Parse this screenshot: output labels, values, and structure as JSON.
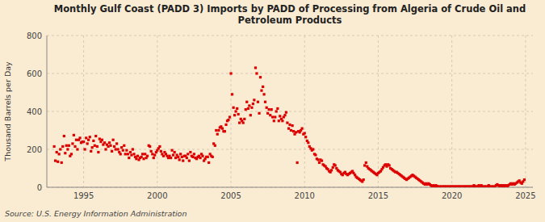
{
  "chart_data": {
    "type": "scatter",
    "title": "Monthly Gulf Coast (PADD 3) Imports by PADD of Processing from Algeria of Crude Oil and\nPetroleum Products",
    "ylabel": "Thousand Barrels per Day",
    "source": "Source: U.S. Energy Information Administration",
    "color": "#dd0000",
    "marker": "square",
    "grid": true,
    "xlim": [
      1992.5,
      2025.5
    ],
    "ylim": [
      0,
      800
    ],
    "xticks": [
      1995,
      2000,
      2005,
      2010,
      2015,
      2020,
      2025
    ],
    "yticks": [
      0,
      200,
      400,
      600,
      800
    ],
    "x": [
      1993.0,
      1993.08,
      1993.17,
      1993.25,
      1993.33,
      1993.42,
      1993.5,
      1993.58,
      1993.67,
      1993.75,
      1993.83,
      1993.92,
      1994.0,
      1994.08,
      1994.17,
      1994.25,
      1994.33,
      1994.42,
      1994.5,
      1994.58,
      1994.67,
      1994.75,
      1994.83,
      1994.92,
      1995.0,
      1995.08,
      1995.17,
      1995.25,
      1995.33,
      1995.42,
      1995.5,
      1995.58,
      1995.67,
      1995.75,
      1995.83,
      1995.92,
      1996.0,
      1996.08,
      1996.17,
      1996.25,
      1996.33,
      1996.42,
      1996.5,
      1996.58,
      1996.67,
      1996.75,
      1996.83,
      1996.92,
      1997.0,
      1997.08,
      1997.17,
      1997.25,
      1997.33,
      1997.42,
      1997.5,
      1997.58,
      1997.67,
      1997.75,
      1997.83,
      1997.92,
      1998.0,
      1998.08,
      1998.17,
      1998.25,
      1998.33,
      1998.42,
      1998.5,
      1998.58,
      1998.67,
      1998.75,
      1998.83,
      1998.92,
      1999.0,
      1999.08,
      1999.17,
      1999.25,
      1999.33,
      1999.42,
      1999.5,
      1999.58,
      1999.67,
      1999.75,
      1999.83,
      1999.92,
      2000.0,
      2000.08,
      2000.17,
      2000.25,
      2000.33,
      2000.42,
      2000.5,
      2000.58,
      2000.67,
      2000.75,
      2000.83,
      2000.92,
      2001.0,
      2001.08,
      2001.17,
      2001.25,
      2001.33,
      2001.42,
      2001.5,
      2001.58,
      2001.67,
      2001.75,
      2001.83,
      2001.92,
      2002.0,
      2002.08,
      2002.17,
      2002.25,
      2002.33,
      2002.42,
      2002.5,
      2002.58,
      2002.67,
      2002.75,
      2002.83,
      2002.92,
      2003.0,
      2003.08,
      2003.17,
      2003.25,
      2003.33,
      2003.42,
      2003.5,
      2003.58,
      2003.67,
      2003.75,
      2003.83,
      2003.92,
      2004.0,
      2004.08,
      2004.17,
      2004.25,
      2004.33,
      2004.42,
      2004.5,
      2004.58,
      2004.67,
      2004.75,
      2004.83,
      2004.92,
      2005.0,
      2005.08,
      2005.17,
      2005.25,
      2005.33,
      2005.42,
      2005.5,
      2005.58,
      2005.67,
      2005.75,
      2005.83,
      2005.92,
      2006.0,
      2006.08,
      2006.17,
      2006.25,
      2006.33,
      2006.42,
      2006.5,
      2006.58,
      2006.67,
      2006.75,
      2006.83,
      2006.92,
      2007.0,
      2007.08,
      2007.17,
      2007.25,
      2007.33,
      2007.42,
      2007.5,
      2007.58,
      2007.67,
      2007.75,
      2007.83,
      2007.92,
      2008.0,
      2008.08,
      2008.17,
      2008.25,
      2008.33,
      2008.42,
      2008.5,
      2008.58,
      2008.67,
      2008.75,
      2008.83,
      2008.92,
      2009.0,
      2009.08,
      2009.17,
      2009.25,
      2009.33,
      2009.42,
      2009.5,
      2009.58,
      2009.67,
      2009.75,
      2009.83,
      2009.92,
      2010.0,
      2010.08,
      2010.17,
      2010.25,
      2010.33,
      2010.42,
      2010.5,
      2010.58,
      2010.67,
      2010.75,
      2010.83,
      2010.92,
      2011.0,
      2011.08,
      2011.17,
      2011.25,
      2011.33,
      2011.42,
      2011.5,
      2011.58,
      2011.67,
      2011.75,
      2011.83,
      2011.92,
      2012.0,
      2012.08,
      2012.17,
      2012.25,
      2012.33,
      2012.42,
      2012.5,
      2012.58,
      2012.67,
      2012.75,
      2012.83,
      2012.92,
      2013.0,
      2013.08,
      2013.17,
      2013.25,
      2013.33,
      2013.42,
      2013.5,
      2013.58,
      2013.67,
      2013.75,
      2013.83,
      2013.92,
      2014.0,
      2014.08,
      2014.17,
      2014.25,
      2014.33,
      2014.42,
      2014.5,
      2014.58,
      2014.67,
      2014.75,
      2014.83,
      2014.92,
      2015.0,
      2015.08,
      2015.17,
      2015.25,
      2015.33,
      2015.42,
      2015.5,
      2015.58,
      2015.67,
      2015.75,
      2015.83,
      2015.92,
      2016.0,
      2016.08,
      2016.17,
      2016.25,
      2016.33,
      2016.42,
      2016.5,
      2016.58,
      2016.67,
      2016.75,
      2016.83,
      2016.92,
      2017.0,
      2017.08,
      2017.17,
      2017.25,
      2017.33,
      2017.42,
      2017.5,
      2017.58,
      2017.67,
      2017.75,
      2017.83,
      2017.92,
      2018.0,
      2018.08,
      2018.17,
      2018.25,
      2018.33,
      2018.42,
      2018.5,
      2018.58,
      2018.67,
      2018.75,
      2018.83,
      2018.92,
      2019.0,
      2019.08,
      2019.17,
      2019.25,
      2019.33,
      2019.42,
      2019.5,
      2019.58,
      2019.67,
      2019.75,
      2019.83,
      2019.92,
      2020.0,
      2020.08,
      2020.17,
      2020.25,
      2020.33,
      2020.42,
      2020.5,
      2020.58,
      2020.67,
      2020.75,
      2020.83,
      2020.92,
      2021.0,
      2021.08,
      2021.17,
      2021.25,
      2021.33,
      2021.42,
      2021.5,
      2021.58,
      2021.67,
      2021.75,
      2021.83,
      2021.92,
      2022.0,
      2022.08,
      2022.17,
      2022.25,
      2022.33,
      2022.42,
      2022.5,
      2022.58,
      2022.67,
      2022.75,
      2022.83,
      2022.92,
      2023.0,
      2023.08,
      2023.17,
      2023.25,
      2023.33,
      2023.42,
      2023.5,
      2023.58,
      2023.67,
      2023.75,
      2023.83,
      2023.92,
      2024.0,
      2024.08,
      2024.17,
      2024.25,
      2024.33,
      2024.42,
      2024.5,
      2024.58,
      2024.67,
      2024.75,
      2024.83,
      2024.92
    ],
    "values": [
      215,
      140,
      185,
      135,
      175,
      200,
      130,
      215,
      270,
      180,
      220,
      200,
      220,
      165,
      175,
      230,
      275,
      215,
      250,
      200,
      250,
      260,
      235,
      240,
      240,
      200,
      260,
      230,
      250,
      265,
      190,
      210,
      245,
      220,
      270,
      215,
      185,
      255,
      240,
      250,
      225,
      235,
      200,
      225,
      215,
      235,
      220,
      190,
      250,
      215,
      200,
      230,
      200,
      185,
      175,
      210,
      195,
      220,
      175,
      195,
      175,
      155,
      185,
      170,
      200,
      175,
      160,
      150,
      165,
      145,
      155,
      160,
      175,
      150,
      175,
      155,
      165,
      220,
      215,
      190,
      175,
      155,
      170,
      185,
      195,
      205,
      215,
      190,
      175,
      165,
      185,
      175,
      165,
      155,
      165,
      155,
      195,
      170,
      185,
      155,
      170,
      160,
      145,
      175,
      160,
      140,
      165,
      165,
      155,
      175,
      140,
      185,
      165,
      160,
      175,
      155,
      150,
      160,
      165,
      155,
      175,
      165,
      140,
      150,
      160,
      160,
      130,
      175,
      165,
      160,
      230,
      220,
      300,
      280,
      300,
      315,
      320,
      310,
      295,
      295,
      330,
      350,
      355,
      370,
      600,
      490,
      420,
      380,
      400,
      415,
      385,
      340,
      360,
      350,
      340,
      360,
      410,
      450,
      415,
      430,
      380,
      420,
      440,
      460,
      630,
      600,
      450,
      390,
      580,
      510,
      530,
      490,
      450,
      420,
      390,
      410,
      380,
      410,
      370,
      350,
      370,
      400,
      415,
      350,
      375,
      360,
      350,
      370,
      380,
      395,
      340,
      310,
      330,
      300,
      325,
      295,
      280,
      290,
      130,
      295,
      290,
      300,
      310,
      280,
      285,
      265,
      245,
      235,
      215,
      205,
      195,
      200,
      175,
      170,
      150,
      145,
      130,
      145,
      140,
      120,
      115,
      110,
      100,
      95,
      85,
      80,
      90,
      105,
      120,
      115,
      100,
      90,
      85,
      80,
      70,
      65,
      75,
      80,
      70,
      65,
      70,
      75,
      80,
      85,
      75,
      65,
      55,
      50,
      45,
      40,
      35,
      30,
      40,
      115,
      130,
      110,
      100,
      95,
      90,
      85,
      80,
      75,
      70,
      65,
      75,
      80,
      85,
      95,
      105,
      115,
      120,
      110,
      120,
      115,
      100,
      95,
      90,
      85,
      80,
      80,
      75,
      70,
      65,
      60,
      55,
      50,
      45,
      40,
      45,
      50,
      55,
      60,
      65,
      60,
      55,
      50,
      45,
      40,
      35,
      30,
      25,
      20,
      15,
      20,
      15,
      20,
      15,
      10,
      5,
      10,
      5,
      10,
      5,
      5,
      0,
      5,
      0,
      5,
      0,
      5,
      0,
      5,
      0,
      5,
      0,
      5,
      0,
      5,
      0,
      5,
      0,
      5,
      0,
      5,
      0,
      5,
      0,
      5,
      0,
      5,
      0,
      5,
      10,
      5,
      0,
      5,
      10,
      5,
      10,
      5,
      0,
      5,
      0,
      5,
      10,
      5,
      0,
      5,
      0,
      5,
      10,
      15,
      10,
      5,
      10,
      5,
      10,
      5,
      10,
      5,
      10,
      15,
      20,
      15,
      20,
      15,
      20,
      25,
      30,
      35,
      25,
      20,
      30,
      40
    ]
  }
}
